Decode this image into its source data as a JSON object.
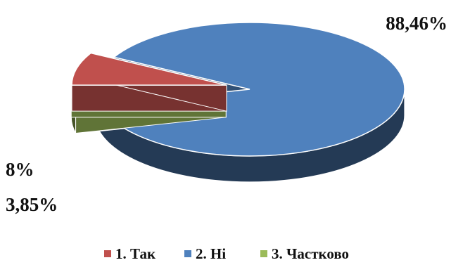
{
  "chart_data": {
    "type": "pie",
    "style": "3d exploded",
    "categories": [
      "1. Так",
      "2. Ні",
      "3. Частково"
    ],
    "values": [
      8,
      88.46,
      3.85
    ],
    "data_labels": [
      "8%",
      "88,46%",
      "3,85%"
    ],
    "colors": [
      "#C0504D",
      "#4F81BD",
      "#9BBB59"
    ],
    "legend_position": "bottom",
    "title": ""
  }
}
